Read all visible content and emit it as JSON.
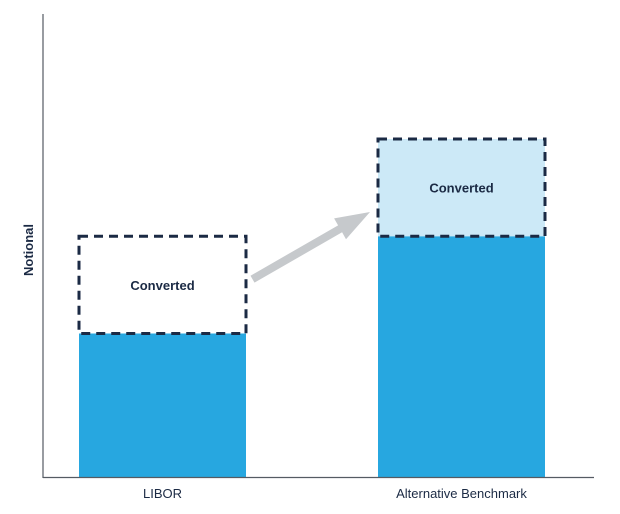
{
  "chart_data": {
    "type": "bar",
    "categories": [
      "LIBOR",
      "Alternative Benchmark"
    ],
    "series": [
      {
        "values": [
          31,
          52
        ]
      },
      {
        "values": [
          21,
          21
        ]
      }
    ],
    "annotations": [
      "Converted",
      "Converted"
    ],
    "xlabel": "",
    "ylabel": "Notional",
    "ylim": [
      0,
      100
    ],
    "grid": false,
    "legend": "none",
    "colors": {
      "base": "#27a7e0",
      "converted_fill_right": "#cce9f7",
      "dashed_outline": "#1b2a44",
      "arrow": "#c6c9cc",
      "text": "#1b2a44"
    }
  }
}
